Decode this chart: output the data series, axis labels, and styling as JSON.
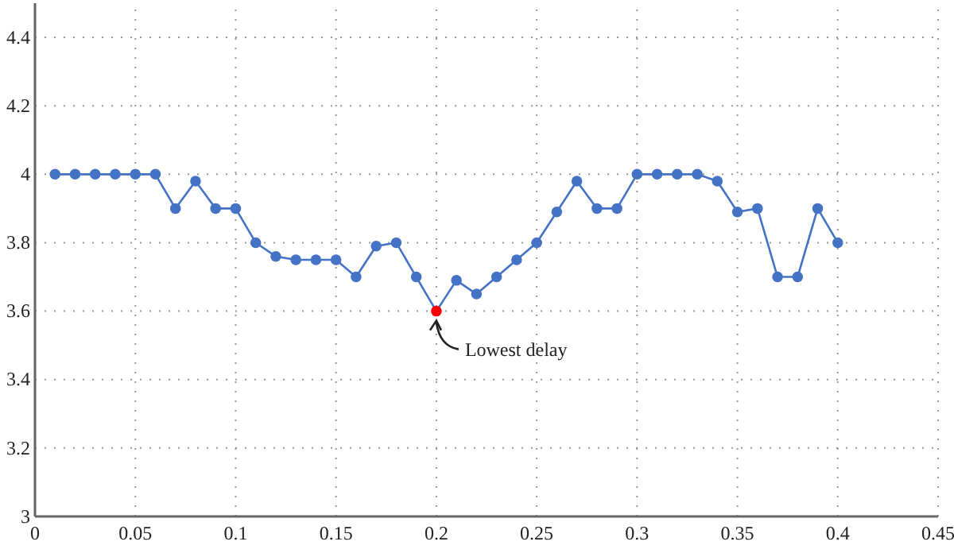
{
  "chart_data": {
    "type": "line",
    "xlim": [
      0,
      0.45
    ],
    "xticks": [
      0,
      0.05,
      0.1,
      0.15,
      0.2,
      0.25,
      0.3,
      0.35,
      0.4,
      0.45
    ],
    "ylim": [
      3,
      4.5
    ],
    "yticks": [
      3,
      3.2,
      3.4,
      3.6,
      3.8,
      4,
      4.2,
      4.4
    ],
    "grid": true,
    "marker": "circle",
    "line_style": "solid",
    "series": [
      {
        "color": "#4472c4",
        "x": [
          0.01,
          0.02,
          0.03,
          0.04,
          0.05,
          0.06,
          0.07,
          0.08,
          0.09,
          0.1,
          0.11,
          0.12,
          0.13,
          0.14,
          0.15,
          0.16,
          0.17,
          0.18,
          0.19,
          0.2,
          0.21,
          0.22,
          0.23,
          0.24,
          0.25,
          0.26,
          0.27,
          0.28,
          0.29,
          0.3,
          0.31,
          0.32,
          0.33,
          0.34,
          0.35,
          0.36,
          0.37,
          0.38,
          0.39,
          0.4
        ],
        "values": [
          4,
          4,
          4,
          4,
          4,
          4,
          3.9,
          3.98,
          3.9,
          3.9,
          3.8,
          3.76,
          3.75,
          3.75,
          3.75,
          3.7,
          3.79,
          3.8,
          3.7,
          3.6,
          3.69,
          3.65,
          3.7,
          3.75,
          3.8,
          3.89,
          3.98,
          3.9,
          3.9,
          4,
          4,
          4,
          4,
          3.98,
          3.89,
          3.9,
          3.7,
          3.7,
          3.9,
          3.8
        ],
        "colors": [
          "#4472c4",
          "#4472c4",
          "#4472c4",
          "#4472c4",
          "#4472c4",
          "#4472c4",
          "#4472c4",
          "#4472c4",
          "#4472c4",
          "#4472c4",
          "#4472c4",
          "#4472c4",
          "#4472c4",
          "#4472c4",
          "#4472c4",
          "#4472c4",
          "#4472c4",
          "#4472c4",
          "#4472c4",
          "#ff0000",
          "#4472c4",
          "#4472c4",
          "#4472c4",
          "#4472c4",
          "#4472c4",
          "#4472c4",
          "#4472c4",
          "#4472c4",
          "#4472c4",
          "#4472c4",
          "#4472c4",
          "#4472c4",
          "#4472c4",
          "#4472c4",
          "#4472c4",
          "#4472c4",
          "#4472c4",
          "#4472c4",
          "#4472c4",
          "#4472c4"
        ]
      }
    ],
    "annotations": [
      {
        "text": "Lowest delay",
        "x": 0.2,
        "y": 3.6
      }
    ]
  }
}
